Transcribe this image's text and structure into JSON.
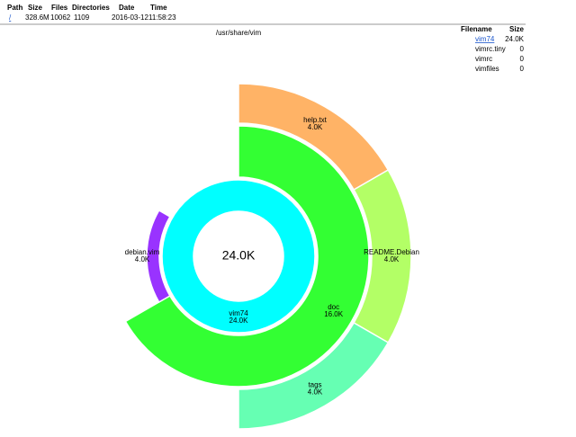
{
  "summary": {
    "headers": [
      "Path",
      "Size",
      "Files",
      "Directories",
      "Date",
      "Time"
    ],
    "row": [
      "/",
      "328.6M",
      10062,
      1109,
      "2016-03-12",
      "11:58:23"
    ]
  },
  "title": "/usr/share/vim",
  "files": {
    "headers": [
      "Filename",
      "Size"
    ],
    "rows": [
      [
        "vim74",
        "24.0K"
      ],
      [
        "vimrc.tiny",
        0
      ],
      [
        "vimrc",
        0
      ],
      [
        "vimfiles",
        0
      ]
    ]
  },
  "sunburst": {
    "nodes": [
      {
        "name": "vim74",
        "value": 24.0,
        "value_label": "24.0K",
        "parent": null,
        "color": "#00ffff"
      },
      {
        "name": "doc",
        "value": 16.0,
        "value_label": "16.0K",
        "parent": 0,
        "color": "#33ff33"
      },
      {
        "name": "debian.vim",
        "value": 4.0,
        "value_label": "4.0K",
        "parent": 0,
        "color": "#9933ff"
      },
      {
        "name": "help.txt",
        "value": 4.0,
        "value_label": "4.0K",
        "parent": 1,
        "color": "#ffb366"
      },
      {
        "name": "README.Debian",
        "value": 4.0,
        "value_label": "4.0K",
        "parent": 1,
        "color": "#b3ff66"
      },
      {
        "name": "tags",
        "value": 4.0,
        "value_label": "4.0K",
        "parent": 1,
        "color": "#66ffb3"
      }
    ]
  }
}
